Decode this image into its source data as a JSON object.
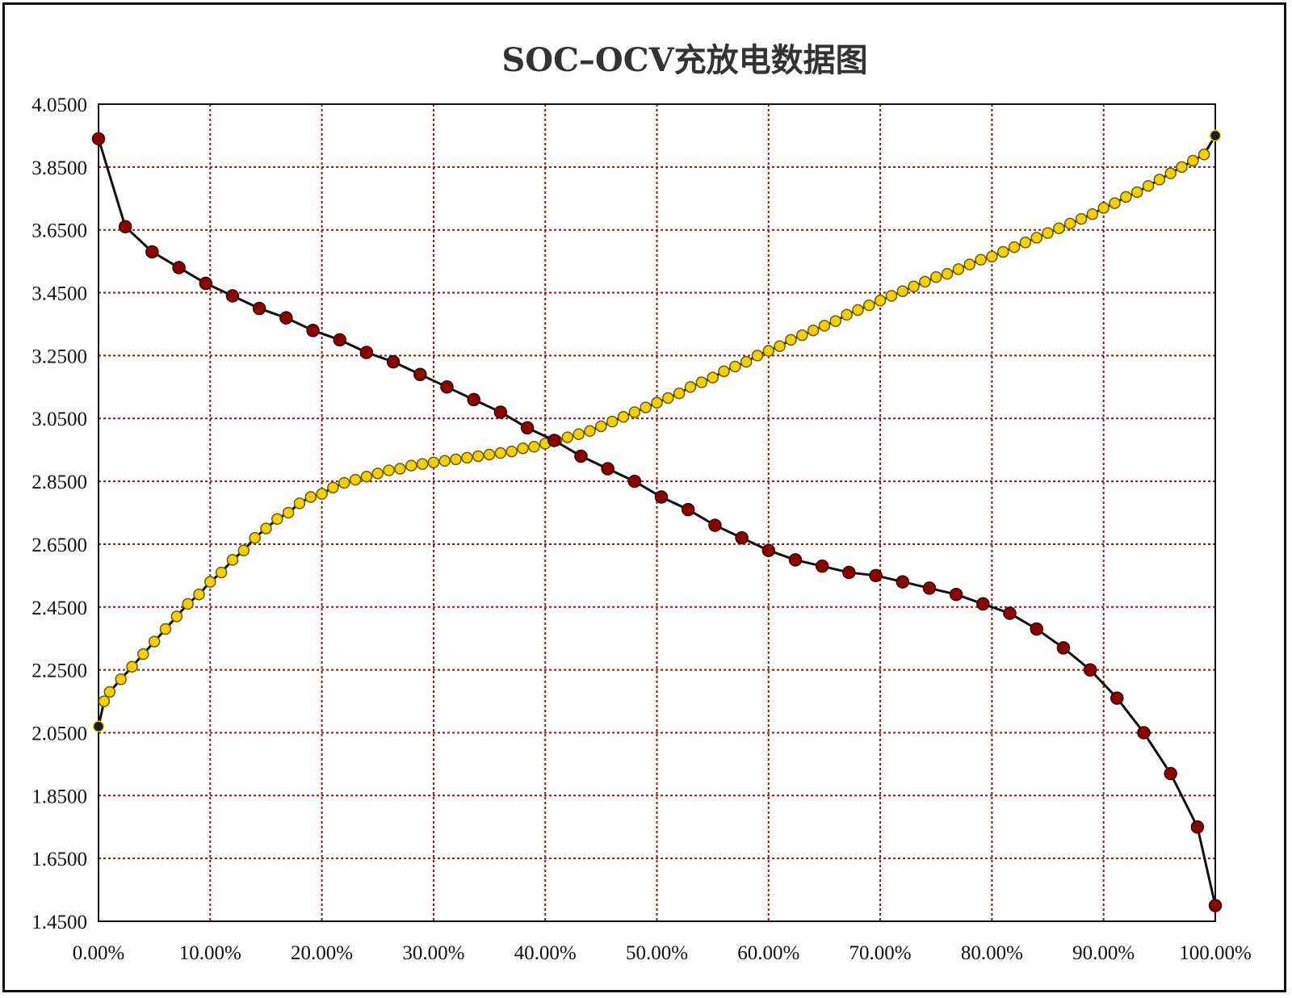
{
  "chart_data": {
    "type": "scatter",
    "title": "SOC–OCV充放电数据图",
    "xlabel": "",
    "ylabel": "",
    "xlim": [
      0,
      100
    ],
    "ylim": [
      1.45,
      4.05
    ],
    "x_ticks": [
      "0.00%",
      "10.00%",
      "20.00%",
      "30.00%",
      "40.00%",
      "50.00%",
      "60.00%",
      "70.00%",
      "80.00%",
      "90.00%",
      "100.00%"
    ],
    "y_ticks": [
      "4.0500",
      "3.8500",
      "3.6500",
      "3.4500",
      "3.2500",
      "3.0500",
      "2.8500",
      "2.6500",
      "2.4500",
      "2.2500",
      "2.0500",
      "1.8500",
      "1.6500",
      "1.4500"
    ],
    "grid": true,
    "series": [
      {
        "color": "#8b0000",
        "marker": "circle",
        "points": [
          [
            0,
            3.94
          ],
          [
            2.4,
            3.66
          ],
          [
            4.8,
            3.58
          ],
          [
            7.2,
            3.53
          ],
          [
            9.6,
            3.48
          ],
          [
            12,
            3.44
          ],
          [
            14.4,
            3.4
          ],
          [
            16.8,
            3.37
          ],
          [
            19.2,
            3.33
          ],
          [
            21.6,
            3.3
          ],
          [
            24,
            3.26
          ],
          [
            26.4,
            3.23
          ],
          [
            28.8,
            3.19
          ],
          [
            31.2,
            3.15
          ],
          [
            33.6,
            3.11
          ],
          [
            36,
            3.07
          ],
          [
            38.4,
            3.02
          ],
          [
            40.8,
            2.98
          ],
          [
            43.2,
            2.93
          ],
          [
            45.6,
            2.89
          ],
          [
            48,
            2.85
          ],
          [
            50.4,
            2.8
          ],
          [
            52.8,
            2.76
          ],
          [
            55.2,
            2.71
          ],
          [
            57.6,
            2.67
          ],
          [
            60,
            2.63
          ],
          [
            62.4,
            2.6
          ],
          [
            64.8,
            2.58
          ],
          [
            67.2,
            2.56
          ],
          [
            69.6,
            2.55
          ],
          [
            72,
            2.53
          ],
          [
            74.4,
            2.51
          ],
          [
            76.8,
            2.49
          ],
          [
            79.2,
            2.46
          ],
          [
            81.6,
            2.43
          ],
          [
            84,
            2.38
          ],
          [
            86.4,
            2.32
          ],
          [
            88.8,
            2.25
          ],
          [
            91.2,
            2.16
          ],
          [
            93.6,
            2.05
          ],
          [
            96,
            1.92
          ],
          [
            98.4,
            1.75
          ],
          [
            100,
            1.5
          ]
        ]
      },
      {
        "color": "#f5d000",
        "marker": "circle",
        "points": [
          [
            0,
            2.07
          ],
          [
            0.5,
            2.15
          ],
          [
            1,
            2.18
          ],
          [
            2,
            2.22
          ],
          [
            3,
            2.26
          ],
          [
            4,
            2.3
          ],
          [
            5,
            2.34
          ],
          [
            6,
            2.38
          ],
          [
            7,
            2.42
          ],
          [
            8,
            2.46
          ],
          [
            9,
            2.49
          ],
          [
            10,
            2.53
          ],
          [
            11,
            2.56
          ],
          [
            12,
            2.6
          ],
          [
            13,
            2.63
          ],
          [
            14,
            2.67
          ],
          [
            15,
            2.7
          ],
          [
            16,
            2.73
          ],
          [
            17,
            2.75
          ],
          [
            18,
            2.78
          ],
          [
            19,
            2.8
          ],
          [
            20,
            2.81
          ],
          [
            21,
            2.83
          ],
          [
            22,
            2.845
          ],
          [
            23,
            2.855
          ],
          [
            24,
            2.865
          ],
          [
            25,
            2.875
          ],
          [
            26,
            2.885
          ],
          [
            27,
            2.89
          ],
          [
            28,
            2.9
          ],
          [
            29,
            2.905
          ],
          [
            30,
            2.91
          ],
          [
            31,
            2.915
          ],
          [
            32,
            2.92
          ],
          [
            33,
            2.925
          ],
          [
            34,
            2.93
          ],
          [
            35,
            2.935
          ],
          [
            36,
            2.94
          ],
          [
            37,
            2.945
          ],
          [
            38,
            2.955
          ],
          [
            39,
            2.96
          ],
          [
            40,
            2.97
          ],
          [
            41,
            2.98
          ],
          [
            42,
            2.99
          ],
          [
            43,
            3.0
          ],
          [
            44,
            3.01
          ],
          [
            45,
            3.025
          ],
          [
            46,
            3.04
          ],
          [
            47,
            3.055
          ],
          [
            48,
            3.07
          ],
          [
            49,
            3.085
          ],
          [
            50,
            3.1
          ],
          [
            51,
            3.115
          ],
          [
            52,
            3.13
          ],
          [
            53,
            3.15
          ],
          [
            54,
            3.165
          ],
          [
            55,
            3.18
          ],
          [
            56,
            3.2
          ],
          [
            57,
            3.215
          ],
          [
            58,
            3.23
          ],
          [
            59,
            3.25
          ],
          [
            60,
            3.265
          ],
          [
            61,
            3.28
          ],
          [
            62,
            3.3
          ],
          [
            63,
            3.315
          ],
          [
            64,
            3.33
          ],
          [
            65,
            3.345
          ],
          [
            66,
            3.36
          ],
          [
            67,
            3.38
          ],
          [
            68,
            3.395
          ],
          [
            69,
            3.41
          ],
          [
            70,
            3.425
          ],
          [
            71,
            3.44
          ],
          [
            72,
            3.455
          ],
          [
            73,
            3.47
          ],
          [
            74,
            3.485
          ],
          [
            75,
            3.5
          ],
          [
            76,
            3.51
          ],
          [
            77,
            3.525
          ],
          [
            78,
            3.54
          ],
          [
            79,
            3.555
          ],
          [
            80,
            3.565
          ],
          [
            81,
            3.58
          ],
          [
            82,
            3.595
          ],
          [
            83,
            3.61
          ],
          [
            84,
            3.625
          ],
          [
            85,
            3.64
          ],
          [
            86,
            3.655
          ],
          [
            87,
            3.67
          ],
          [
            88,
            3.685
          ],
          [
            89,
            3.7
          ],
          [
            90,
            3.72
          ],
          [
            91,
            3.735
          ],
          [
            92,
            3.755
          ],
          [
            93,
            3.77
          ],
          [
            94,
            3.79
          ],
          [
            95,
            3.81
          ],
          [
            96,
            3.83
          ],
          [
            97,
            3.85
          ],
          [
            98,
            3.87
          ],
          [
            99,
            3.89
          ],
          [
            100,
            3.95
          ]
        ]
      }
    ]
  }
}
